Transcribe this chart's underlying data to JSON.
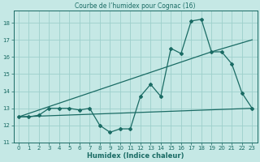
{
  "title": "Courbe de l’humidex pour Cognac (16)",
  "xlabel": "Humidex (Indice chaleur)",
  "xlim": [
    -0.5,
    23.5
  ],
  "ylim": [
    11,
    18.7
  ],
  "yticks": [
    11,
    12,
    13,
    14,
    15,
    16,
    17,
    18
  ],
  "xticks": [
    0,
    1,
    2,
    3,
    4,
    5,
    6,
    7,
    8,
    9,
    10,
    11,
    12,
    13,
    14,
    15,
    16,
    17,
    18,
    19,
    20,
    21,
    22,
    23
  ],
  "bg_color": "#c5e8e5",
  "grid_color": "#9dcfcb",
  "line_color": "#1a6b64",
  "series1_x": [
    0,
    1,
    2,
    3,
    4,
    5,
    6,
    7,
    8,
    9,
    10,
    11,
    12,
    13,
    14,
    15,
    16,
    17,
    18,
    19,
    20,
    21,
    22,
    23
  ],
  "series1_y": [
    12.5,
    12.5,
    12.6,
    13.0,
    13.0,
    13.0,
    12.9,
    13.0,
    12.0,
    11.6,
    11.8,
    11.8,
    13.7,
    14.4,
    13.7,
    16.5,
    16.2,
    18.1,
    18.2,
    16.3,
    16.3,
    15.6,
    13.9,
    13.0
  ],
  "series2_x": [
    0,
    23
  ],
  "series2_y": [
    12.5,
    13.0
  ],
  "series3_x": [
    0,
    19,
    23
  ],
  "series3_y": [
    12.5,
    16.3,
    17.0
  ]
}
